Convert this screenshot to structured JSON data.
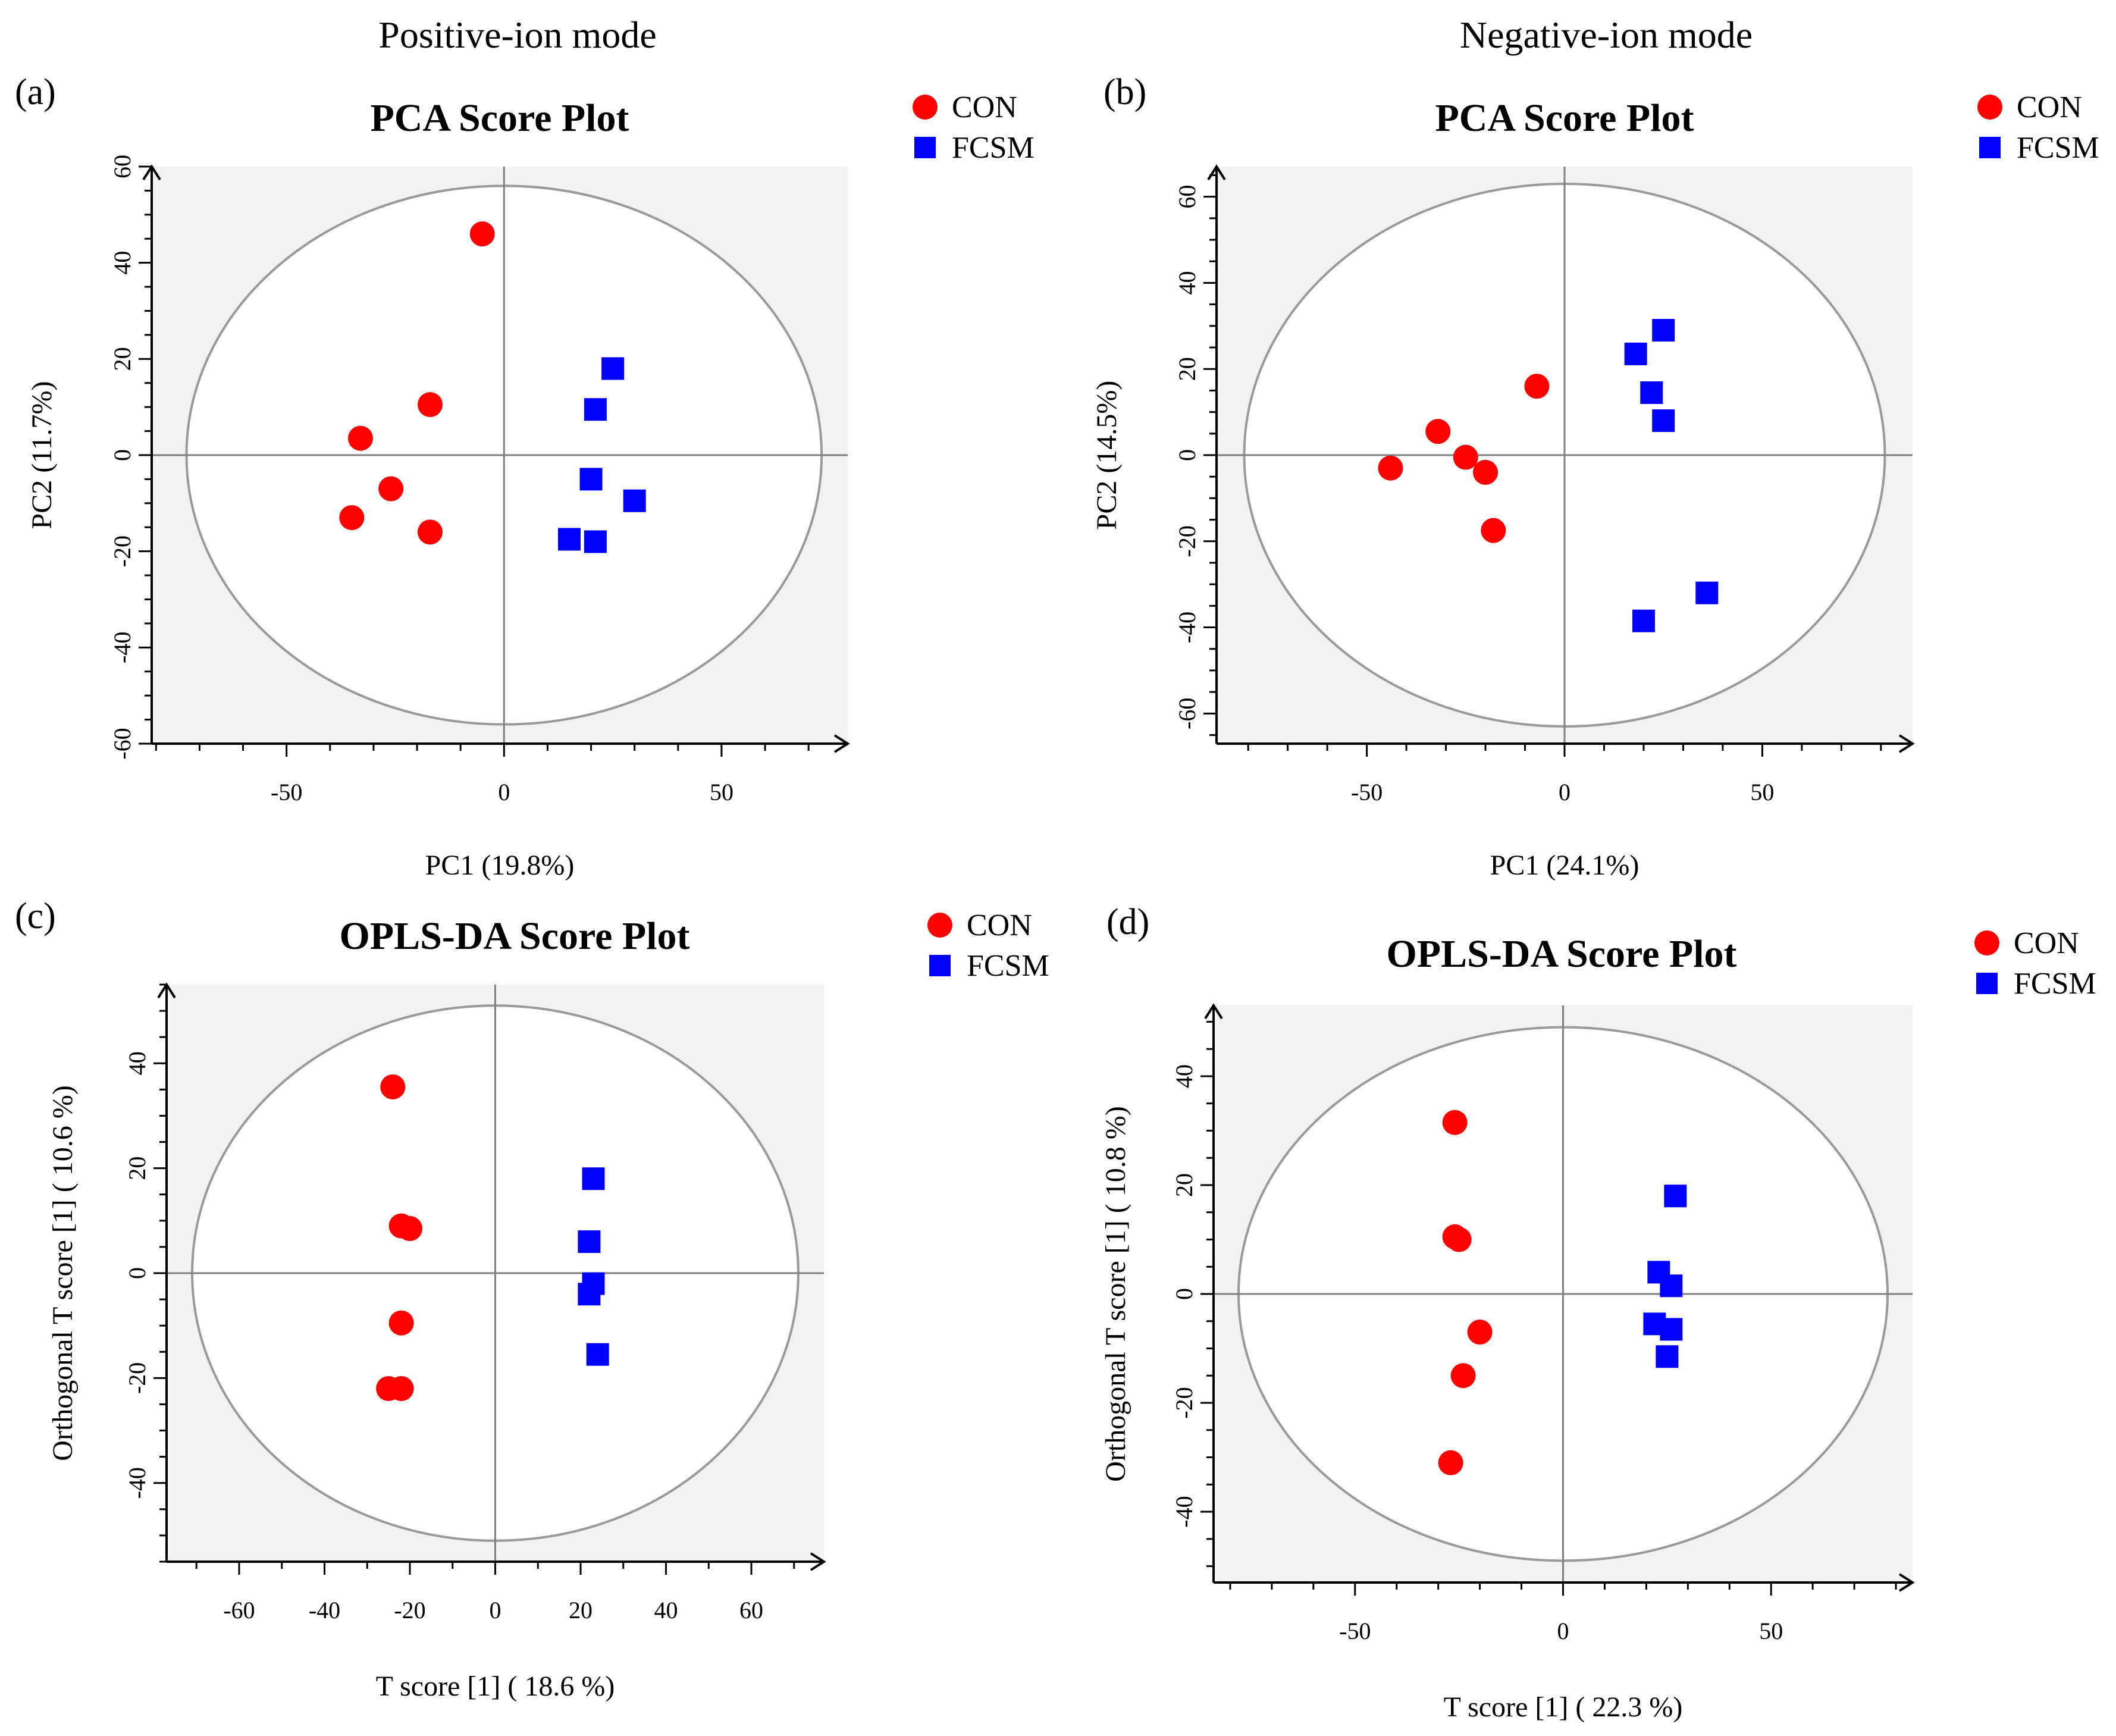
{
  "figure": {
    "left_heading": "Positive-ion mode",
    "right_heading": "Negative-ion mode"
  },
  "colors": {
    "con": "#ff0000",
    "fcsm": "#0000ff",
    "plot_bg": "#f2f2f2",
    "ellipse": "#9a9a9a",
    "crosshair": "#808080"
  },
  "chart_data": [
    {
      "id": "a",
      "panel_label": "(a)",
      "type": "scatter",
      "title": "PCA Score Plot",
      "xlabel": "PC1 (19.8%)",
      "ylabel": "PC2 (11.7%)",
      "xlim": [
        -81,
        79
      ],
      "ylim": [
        -60,
        60
      ],
      "xticks": [
        -50,
        0,
        50
      ],
      "xticklabels": [
        "-50",
        "0",
        "50"
      ],
      "yticks": [
        -60,
        -40,
        -20,
        0,
        20,
        40,
        60
      ],
      "yticklabels": [
        "-60",
        "-40",
        "-20",
        "0",
        "20",
        "40",
        "60"
      ],
      "ellipse": {
        "rx": 73,
        "ry": 56
      },
      "legend": [
        "CON",
        "FCSM"
      ],
      "series": [
        {
          "name": "CON",
          "marker": "circle",
          "points": [
            [
              -5,
              46
            ],
            [
              -17,
              10.5
            ],
            [
              -33,
              3.5
            ],
            [
              -26,
              -7
            ],
            [
              -35,
              -13
            ],
            [
              -17,
              -16
            ]
          ]
        },
        {
          "name": "FCSM",
          "marker": "square",
          "points": [
            [
              25,
              18
            ],
            [
              21,
              9.5
            ],
            [
              20,
              -5
            ],
            [
              30,
              -9.5
            ],
            [
              15,
              -17.5
            ],
            [
              21,
              -18
            ]
          ]
        }
      ]
    },
    {
      "id": "b",
      "panel_label": "(b)",
      "type": "scatter",
      "title": "PCA Score Plot",
      "xlabel": "PC1 (24.1%)",
      "ylabel": "PC2 (14.5%)",
      "xlim": [
        -88,
        88
      ],
      "ylim": [
        -67,
        67
      ],
      "xticks": [
        -50,
        0,
        50
      ],
      "xticklabels": [
        "-50",
        "0",
        "50"
      ],
      "yticks": [
        -60,
        -40,
        -20,
        0,
        20,
        40,
        60
      ],
      "yticklabels": [
        "-60",
        "-40",
        "-20",
        "0",
        "20",
        "40",
        "60"
      ],
      "ellipse": {
        "rx": 81,
        "ry": 63
      },
      "legend": [
        "CON",
        "FCSM"
      ],
      "series": [
        {
          "name": "CON",
          "marker": "circle",
          "points": [
            [
              -7,
              16
            ],
            [
              -32,
              5.5
            ],
            [
              -25,
              -0.5
            ],
            [
              -20,
              -4
            ],
            [
              -44,
              -3
            ],
            [
              -18,
              -17.5
            ]
          ]
        },
        {
          "name": "FCSM",
          "marker": "square",
          "points": [
            [
              25,
              29
            ],
            [
              18,
              23.5
            ],
            [
              22,
              14.5
            ],
            [
              25,
              8
            ],
            [
              36,
              -32
            ],
            [
              20,
              -38.5
            ]
          ]
        }
      ]
    },
    {
      "id": "c",
      "panel_label": "(c)",
      "type": "scatter",
      "title": "OPLS-DA Score Plot",
      "xlabel": "T score [1] ( 18.6 %)",
      "ylabel": "Orthogonal T score [1] ( 10.6 %)",
      "xlim": [
        -77,
        77
      ],
      "ylim": [
        -55,
        55
      ],
      "xticks": [
        -60,
        -40,
        -20,
        0,
        20,
        40,
        60
      ],
      "xticklabels": [
        "-60",
        "-40",
        "-20",
        "0",
        "20",
        "40",
        "60"
      ],
      "yticks": [
        -40,
        -20,
        0,
        20,
        40
      ],
      "yticklabels": [
        "-40",
        "-20",
        "0",
        "20",
        "40"
      ],
      "ellipse": {
        "rx": 71,
        "ry": 51
      },
      "legend": [
        "CON",
        "FCSM"
      ],
      "series": [
        {
          "name": "CON",
          "marker": "circle",
          "points": [
            [
              -24,
              35.5
            ],
            [
              -22,
              9
            ],
            [
              -20,
              8.5
            ],
            [
              -22,
              -9.5
            ],
            [
              -25,
              -22
            ],
            [
              -22,
              -22
            ]
          ]
        },
        {
          "name": "FCSM",
          "marker": "square",
          "points": [
            [
              23,
              18
            ],
            [
              22,
              6
            ],
            [
              23,
              -2
            ],
            [
              22,
              -4
            ],
            [
              24,
              -15.5
            ]
          ]
        }
      ]
    },
    {
      "id": "d",
      "panel_label": "(d)",
      "type": "scatter",
      "title": "OPLS-DA Score Plot",
      "xlabel": "T score [1] ( 22.3 %)",
      "ylabel": "Orthogonal T score [1] ( 10.8 %)",
      "xlim": [
        -84,
        84
      ],
      "ylim": [
        -53,
        53
      ],
      "xticks": [
        -50,
        0,
        50
      ],
      "xticklabels": [
        "-50",
        "0",
        "50"
      ],
      "yticks": [
        -40,
        -20,
        0,
        20,
        40
      ],
      "yticklabels": [
        "-40",
        "-20",
        "0",
        "20",
        "40"
      ],
      "ellipse": {
        "rx": 78,
        "ry": 49
      },
      "legend": [
        "CON",
        "FCSM"
      ],
      "series": [
        {
          "name": "CON",
          "marker": "circle",
          "points": [
            [
              -26,
              31.5
            ],
            [
              -26,
              10.5
            ],
            [
              -25,
              10
            ],
            [
              -20,
              -7
            ],
            [
              -24,
              -15
            ],
            [
              -27,
              -31
            ]
          ]
        },
        {
          "name": "FCSM",
          "marker": "square",
          "points": [
            [
              27,
              18
            ],
            [
              23,
              4
            ],
            [
              26,
              1.5
            ],
            [
              22,
              -5.5
            ],
            [
              26,
              -6.5
            ],
            [
              25,
              -11.5
            ]
          ]
        }
      ]
    }
  ]
}
